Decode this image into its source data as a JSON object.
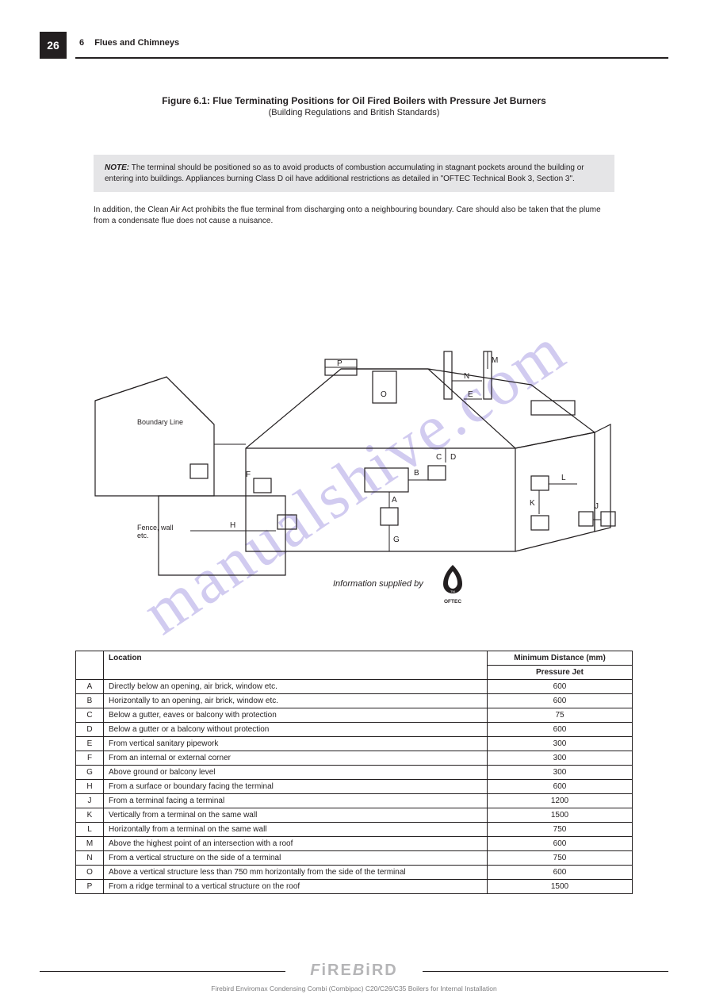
{
  "page": {
    "number": "26",
    "section_number": "6",
    "section_title": "Flues and Chimneys"
  },
  "figure": {
    "title_line1": "Figure 6.1: Flue Terminating Positions for Oil Fired Boilers with Pressure Jet Burners",
    "title_line2": "(Building Regulations and British Standards)",
    "note_label": "NOTE:",
    "note_text": " The terminal should be positioned so as to avoid products of combustion accumulating in stagnant pockets around the building or entering into buildings. Appliances burning Class D oil have additional restrictions as detailed in \"OFTEC Technical Book 3, Section 3\".",
    "after_note": "In addition, the Clean Air Act prohibits the flue terminal from discharging onto a neighbouring boundary. Care should also be taken that the plume from a condensate flue does not cause a nuisance.",
    "boundary_line_label": "Boundary Line",
    "fence_wall_label": "Fence, wall etc.",
    "caption": "Information supplied by",
    "logo_text": "OFTEC",
    "diagram_letters": [
      "A",
      "B",
      "C",
      "D",
      "E",
      "F",
      "G",
      "H",
      "J",
      "K",
      "L",
      "M",
      "N"
    ]
  },
  "table": {
    "headers": [
      "",
      "Location",
      "Minimum Distance (mm)"
    ],
    "subheaders": [
      "Pressure Jet"
    ],
    "rows": [
      [
        "A",
        "Directly below an opening, air brick, window etc.",
        "600"
      ],
      [
        "B",
        "Horizontally to an opening, air brick, window etc.",
        "600"
      ],
      [
        "C",
        "Below a gutter, eaves or balcony with protection",
        "75"
      ],
      [
        "D",
        "Below a gutter or a balcony without protection",
        "600"
      ],
      [
        "E",
        "From vertical sanitary pipework",
        "300"
      ],
      [
        "F",
        "From an internal or external corner",
        "300"
      ],
      [
        "G",
        "Above ground or balcony level",
        "300"
      ],
      [
        "H",
        "From a surface or boundary facing the terminal",
        "600"
      ],
      [
        "J",
        "From a terminal facing a terminal",
        "1200"
      ],
      [
        "K",
        "Vertically from a terminal on the same wall",
        "1500"
      ],
      [
        "L",
        "Horizontally from a terminal on the same wall",
        "750"
      ],
      [
        "M",
        "Above the highest point of an intersection with a roof",
        "600"
      ],
      [
        "N",
        "From a vertical structure on the side of a terminal",
        "750"
      ],
      [
        "O",
        "Above a vertical structure less than 750 mm horizontally from the side of the terminal",
        "600"
      ],
      [
        "P",
        "From a ridge terminal to a vertical structure on the roof",
        "1500"
      ]
    ]
  },
  "footer": {
    "logo": "FiREBiRD",
    "sub": "Firebird Enviromax Condensing Combi (Combipac) C20/C26/C35 Boilers for Internal Installation"
  },
  "watermark": "manualshive.com",
  "colors": {
    "ink": "#231f20",
    "note_bg": "#e5e5e7",
    "watermark": "rgba(88,68,200,0.28)",
    "footer_logo": "#b5b5b7",
    "footer_sub": "#7d7d7f"
  }
}
